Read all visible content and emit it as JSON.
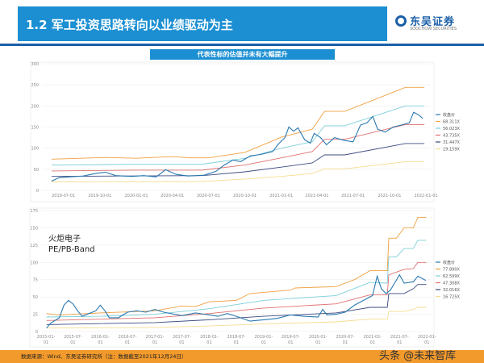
{
  "header": {
    "title": "1.2 军工投资思路转向以业绩驱动为主",
    "logo_cn": "东吴证券",
    "logo_en": "SOOCHOW SECURITIES",
    "logo_sub": "东吴证券"
  },
  "subtitle": "代表性标的估值并未有大幅提升",
  "footer": {
    "source": "数据来源：Wind、东吴证券研究所（注：数据截至2021年12月24日）"
  },
  "watermark": "头条 @未来智库",
  "chart_data": [
    {
      "type": "line",
      "ylim": [
        0,
        300
      ],
      "yticks": [
        0,
        50,
        100,
        150,
        200,
        250,
        300
      ],
      "xticks": [
        "2019-07-01",
        "2019-10-01",
        "2020-01-01",
        "2020-04-01",
        "2020-07-01",
        "2020-10-01",
        "2021-01-01",
        "2021-04-01",
        "2021-07-01",
        "2021-10-01",
        "2022-01-01"
      ],
      "xlim": [
        "2019-05-20",
        "2022-01-05"
      ],
      "grid": true,
      "legend": "right",
      "series": [
        {
          "name": "收盘价",
          "color": "#2a78b0",
          "points": [
            [
              "2019-06-01",
              22
            ],
            [
              "2019-06-20",
              30
            ],
            [
              "2019-07-15",
              32
            ],
            [
              "2019-08-20",
              34
            ],
            [
              "2019-09-20",
              40
            ],
            [
              "2019-10-15",
              43
            ],
            [
              "2019-11-10",
              35
            ],
            [
              "2019-12-20",
              33
            ],
            [
              "2020-01-20",
              35
            ],
            [
              "2020-02-20",
              32
            ],
            [
              "2020-03-15",
              49
            ],
            [
              "2020-04-10",
              38
            ],
            [
              "2020-05-10",
              34
            ],
            [
              "2020-06-20",
              36
            ],
            [
              "2020-07-20",
              45
            ],
            [
              "2020-08-10",
              60
            ],
            [
              "2020-09-01",
              72
            ],
            [
              "2020-09-20",
              68
            ],
            [
              "2020-10-15",
              82
            ],
            [
              "2020-11-10",
              85
            ],
            [
              "2020-12-10",
              92
            ],
            [
              "2020-12-25",
              110
            ],
            [
              "2021-01-10",
              125
            ],
            [
              "2021-01-20",
              150
            ],
            [
              "2021-02-01",
              140
            ],
            [
              "2021-02-12",
              148
            ],
            [
              "2021-03-01",
              120
            ],
            [
              "2021-03-15",
              112
            ],
            [
              "2021-03-25",
              135
            ],
            [
              "2021-04-10",
              125
            ],
            [
              "2021-04-25",
              108
            ],
            [
              "2021-05-15",
              125
            ],
            [
              "2021-06-10",
              118
            ],
            [
              "2021-07-01",
              115
            ],
            [
              "2021-07-20",
              155
            ],
            [
              "2021-08-05",
              160
            ],
            [
              "2021-08-20",
              175
            ],
            [
              "2021-09-01",
              145
            ],
            [
              "2021-09-20",
              138
            ],
            [
              "2021-10-10",
              150
            ],
            [
              "2021-11-01",
              155
            ],
            [
              "2021-11-20",
              160
            ],
            [
              "2021-12-01",
              185
            ],
            [
              "2021-12-15",
              178
            ],
            [
              "2021-12-24",
              170
            ]
          ]
        },
        {
          "name": "68.311X",
          "color": "#f0a040",
          "points": [
            [
              "2019-06-01",
              74
            ],
            [
              "2019-10-15",
              78
            ],
            [
              "2020-01-01",
              76
            ],
            [
              "2020-04-01",
              80
            ],
            [
              "2020-05-15",
              77
            ],
            [
              "2020-07-01",
              77
            ],
            [
              "2020-10-01",
              90
            ],
            [
              "2021-01-01",
              126
            ],
            [
              "2021-03-20",
              145
            ],
            [
              "2021-04-20",
              187
            ],
            [
              "2021-06-10",
              187
            ],
            [
              "2021-11-10",
              244
            ],
            [
              "2021-12-28",
              244
            ]
          ]
        },
        {
          "name": "56.023X",
          "color": "#7ccfd8",
          "points": [
            [
              "2019-06-01",
              60
            ],
            [
              "2020-01-01",
              62
            ],
            [
              "2020-06-15",
              62
            ],
            [
              "2020-10-01",
              76
            ],
            [
              "2021-01-01",
              100
            ],
            [
              "2021-03-20",
              115
            ],
            [
              "2021-04-20",
              153
            ],
            [
              "2021-06-10",
              153
            ],
            [
              "2021-11-10",
              200
            ],
            [
              "2021-12-28",
              200
            ]
          ]
        },
        {
          "name": "43.735X",
          "color": "#e07070",
          "points": [
            [
              "2019-06-01",
              46
            ],
            [
              "2020-01-01",
              48
            ],
            [
              "2020-06-15",
              48
            ],
            [
              "2020-10-01",
              60
            ],
            [
              "2021-01-01",
              77
            ],
            [
              "2021-03-20",
              92
            ],
            [
              "2021-04-20",
              121
            ],
            [
              "2021-06-10",
              121
            ],
            [
              "2021-11-10",
              156
            ],
            [
              "2021-12-28",
              156
            ]
          ]
        },
        {
          "name": "31.447X",
          "color": "#3a4a80",
          "points": [
            [
              "2019-06-01",
              33
            ],
            [
              "2020-06-15",
              35
            ],
            [
              "2020-10-01",
              44
            ],
            [
              "2021-01-01",
              55
            ],
            [
              "2021-03-20",
              65
            ],
            [
              "2021-04-20",
              84
            ],
            [
              "2021-06-10",
              84
            ],
            [
              "2021-11-10",
              111
            ],
            [
              "2021-12-28",
              111
            ]
          ]
        },
        {
          "name": "19.159X",
          "color": "#f5dc90",
          "points": [
            [
              "2019-06-01",
              20
            ],
            [
              "2020-06-15",
              21
            ],
            [
              "2020-10-01",
              27
            ],
            [
              "2021-01-01",
              33
            ],
            [
              "2021-03-20",
              40
            ],
            [
              "2021-04-20",
              51
            ],
            [
              "2021-06-10",
              51
            ],
            [
              "2021-11-10",
              68
            ],
            [
              "2021-12-28",
              68
            ]
          ]
        }
      ]
    },
    {
      "type": "line",
      "ylim": [
        0,
        175
      ],
      "yticks": [
        0,
        25,
        50,
        75,
        100,
        125,
        150,
        175
      ],
      "xticks": [
        "2015-01-01",
        "2015-07-01",
        "2016-01-01",
        "2016-07-01",
        "2017-01-01",
        "2017-07-01",
        "2018-01-01",
        "2018-07-01",
        "2019-01-01",
        "2019-07-01",
        "2020-01-01",
        "2020-07-01",
        "2021-01-01",
        "2021-07-01",
        "2022-01-01"
      ],
      "xlim": [
        "2015-01-01",
        "2022-01-05"
      ],
      "grid": true,
      "legend": "right",
      "annotation": "火炬电子\nPE/PB-Band",
      "series": [
        {
          "name": "收盘价",
          "color": "#2a78b0",
          "points": [
            [
              "2015-01-05",
              5
            ],
            [
              "2015-02-01",
              12
            ],
            [
              "2015-04-01",
              20
            ],
            [
              "2015-05-01",
              38
            ],
            [
              "2015-06-01",
              45
            ],
            [
              "2015-07-01",
              40
            ],
            [
              "2015-08-01",
              30
            ],
            [
              "2015-09-01",
              22
            ],
            [
              "2015-12-01",
              30
            ],
            [
              "2016-01-01",
              38
            ],
            [
              "2016-02-01",
              30
            ],
            [
              "2016-03-01",
              20
            ],
            [
              "2016-05-01",
              20
            ],
            [
              "2016-07-01",
              28
            ],
            [
              "2016-09-01",
              30
            ],
            [
              "2016-11-01",
              28
            ],
            [
              "2017-01-01",
              32
            ],
            [
              "2017-03-01",
              28
            ],
            [
              "2017-07-01",
              23
            ],
            [
              "2017-10-01",
              27
            ],
            [
              "2018-01-01",
              24
            ],
            [
              "2018-03-01",
              22
            ],
            [
              "2018-05-01",
              26
            ],
            [
              "2018-07-01",
              22
            ],
            [
              "2018-10-01",
              15
            ],
            [
              "2019-01-01",
              17
            ],
            [
              "2019-04-01",
              19
            ],
            [
              "2019-07-01",
              24
            ],
            [
              "2019-10-01",
              22
            ],
            [
              "2020-01-01",
              21
            ],
            [
              "2020-02-01",
              32
            ],
            [
              "2020-03-01",
              24
            ],
            [
              "2020-05-01",
              25
            ],
            [
              "2020-07-01",
              28
            ],
            [
              "2020-09-01",
              38
            ],
            [
              "2020-11-01",
              45
            ],
            [
              "2021-01-01",
              52
            ],
            [
              "2021-02-01",
              80
            ],
            [
              "2021-03-01",
              62
            ],
            [
              "2021-04-01",
              55
            ],
            [
              "2021-05-01",
              60
            ],
            [
              "2021-07-01",
              82
            ],
            [
              "2021-08-01",
              70
            ],
            [
              "2021-10-01",
              72
            ],
            [
              "2021-11-01",
              80
            ],
            [
              "2021-12-24",
              74
            ]
          ]
        },
        {
          "name": "77.890X",
          "color": "#f0a040",
          "points": [
            [
              "2015-01-05",
              26
            ],
            [
              "2015-04-01",
              24
            ],
            [
              "2016-01-01",
              27
            ],
            [
              "2017-01-01",
              30
            ],
            [
              "2017-07-01",
              37
            ],
            [
              "2017-10-01",
              36
            ],
            [
              "2018-01-01",
              43
            ],
            [
              "2018-07-01",
              45
            ],
            [
              "2018-10-01",
              55
            ],
            [
              "2019-07-01",
              60
            ],
            [
              "2019-08-01",
              63
            ],
            [
              "2020-05-01",
              65
            ],
            [
              "2020-09-01",
              75
            ],
            [
              "2020-12-15",
              88
            ],
            [
              "2021-04-10",
              88
            ],
            [
              "2021-04-20",
              135
            ],
            [
              "2021-06-10",
              135
            ],
            [
              "2021-08-01",
              150
            ],
            [
              "2021-10-01",
              150
            ],
            [
              "2021-11-01",
              165
            ],
            [
              "2021-12-28",
              165
            ]
          ]
        },
        {
          "name": "62.599X",
          "color": "#7ccfd8",
          "points": [
            [
              "2015-01-05",
              21
            ],
            [
              "2016-01-01",
              22
            ],
            [
              "2017-01-01",
              25
            ],
            [
              "2018-01-01",
              33
            ],
            [
              "2019-01-01",
              45
            ],
            [
              "2020-05-01",
              52
            ],
            [
              "2020-12-15",
              71
            ],
            [
              "2021-04-10",
              70
            ],
            [
              "2021-04-20",
              108
            ],
            [
              "2021-06-10",
              108
            ],
            [
              "2021-08-01",
              120
            ],
            [
              "2021-10-01",
              120
            ],
            [
              "2021-11-01",
              132
            ],
            [
              "2021-12-28",
              132
            ]
          ]
        },
        {
          "name": "47.308X",
          "color": "#e07070",
          "points": [
            [
              "2015-01-05",
              16
            ],
            [
              "2017-01-01",
              20
            ],
            [
              "2018-01-01",
              26
            ],
            [
              "2019-01-01",
              34
            ],
            [
              "2020-05-01",
              40
            ],
            [
              "2020-12-15",
              53
            ],
            [
              "2021-04-10",
              53
            ],
            [
              "2021-04-20",
              82
            ],
            [
              "2021-08-01",
              90
            ],
            [
              "2021-10-01",
              91
            ],
            [
              "2021-11-01",
              100
            ],
            [
              "2021-12-28",
              100
            ]
          ]
        },
        {
          "name": "32.016X",
          "color": "#3a4a80",
          "points": [
            [
              "2015-01-05",
              10
            ],
            [
              "2017-01-01",
              13
            ],
            [
              "2018-01-01",
              17
            ],
            [
              "2019-01-01",
              22
            ],
            [
              "2020-05-01",
              27
            ],
            [
              "2020-12-15",
              35
            ],
            [
              "2021-04-10",
              35
            ],
            [
              "2021-04-20",
              55
            ],
            [
              "2021-08-01",
              55
            ],
            [
              "2021-10-01",
              62
            ],
            [
              "2021-11-01",
              68
            ],
            [
              "2021-12-28",
              68
            ]
          ]
        },
        {
          "name": "16.725X",
          "color": "#f5dc90",
          "points": [
            [
              "2015-01-05",
              5
            ],
            [
              "2017-01-01",
              6
            ],
            [
              "2018-01-01",
              8
            ],
            [
              "2019-01-01",
              11
            ],
            [
              "2020-05-01",
              14
            ],
            [
              "2020-12-15",
              18
            ],
            [
              "2021-04-10",
              18
            ],
            [
              "2021-04-20",
              29
            ],
            [
              "2021-08-01",
              29
            ],
            [
              "2021-10-01",
              32
            ],
            [
              "2021-11-01",
              35
            ],
            [
              "2021-12-28",
              35
            ]
          ]
        }
      ]
    }
  ]
}
